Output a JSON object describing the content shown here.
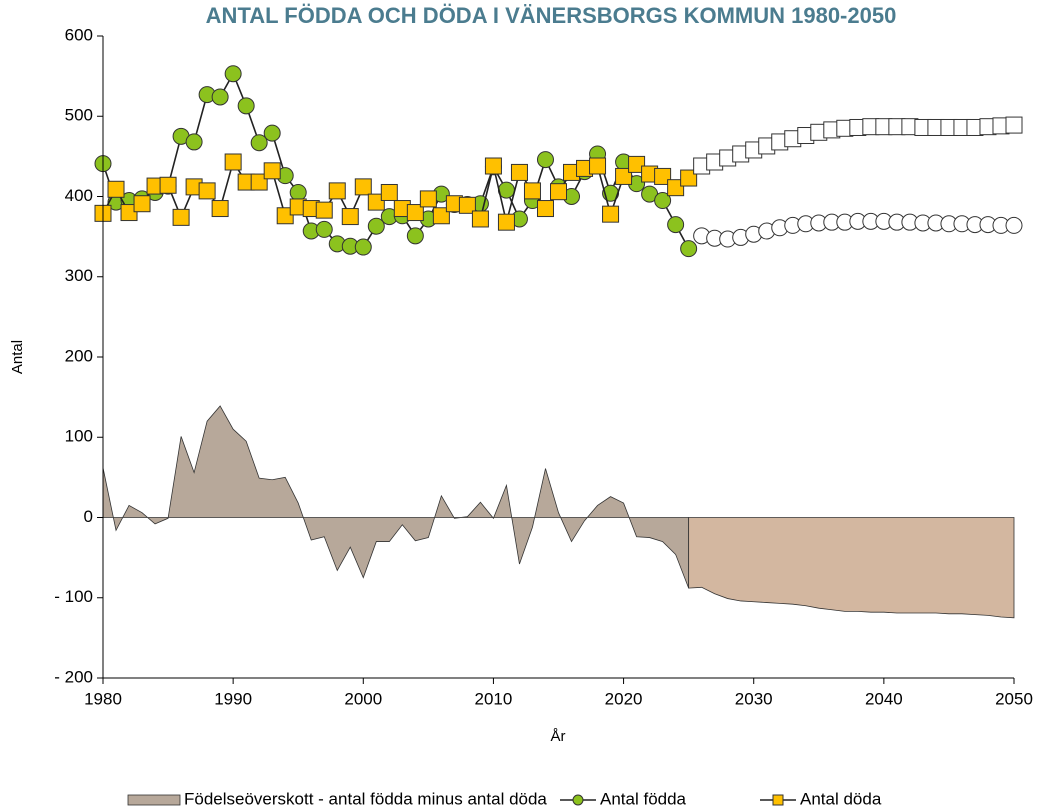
{
  "chart_data": {
    "type": "line",
    "title": "ANTAL FÖDDA OCH DÖDA I VÄNERSBORGS KOMMUN 1980-2050",
    "x_label": "År",
    "y_label": "Antal",
    "x": [
      1980,
      1981,
      1982,
      1983,
      1984,
      1985,
      1986,
      1987,
      1988,
      1989,
      1990,
      1991,
      1992,
      1993,
      1994,
      1995,
      1996,
      1997,
      1998,
      1999,
      2000,
      2001,
      2002,
      2003,
      2004,
      2005,
      2006,
      2007,
      2008,
      2009,
      2010,
      2011,
      2012,
      2013,
      2014,
      2015,
      2016,
      2017,
      2018,
      2019,
      2020,
      2021,
      2022,
      2023,
      2024,
      2025,
      2026,
      2027,
      2028,
      2029,
      2030,
      2031,
      2032,
      2033,
      2034,
      2035,
      2036,
      2037,
      2038,
      2039,
      2040,
      2041,
      2042,
      2043,
      2044,
      2045,
      2046,
      2047,
      2048,
      2049,
      2050
    ],
    "xlim": [
      1980,
      2050
    ],
    "xticks": [
      1980,
      1990,
      2000,
      2010,
      2020,
      2030,
      2040,
      2050
    ],
    "ylim": [
      -200,
      600
    ],
    "yticks": [
      {
        "value": -200,
        "label": "- 200"
      },
      {
        "value": -100,
        "label": "- 100"
      },
      0,
      100,
      200,
      300,
      400,
      500,
      600
    ],
    "grid": false,
    "legend": "bottom",
    "series": [
      {
        "name": "Födelseöverskott - antal födda minus antal döda",
        "type": "area",
        "color": "#b7a89a",
        "values": [
          62,
          -16,
          15,
          6,
          -8,
          -1,
          101,
          56,
          120,
          139,
          110,
          95,
          49,
          47,
          50,
          18,
          -28,
          -24,
          -66,
          -37,
          -75,
          -30,
          -30,
          -9,
          -29,
          -25,
          27,
          -1,
          1,
          19,
          -1,
          40,
          -58,
          -12,
          61,
          6,
          -30,
          -4,
          15,
          26,
          18,
          -24,
          -25,
          -30,
          -46,
          -88,
          null,
          null,
          null,
          null,
          null,
          null,
          null,
          null,
          null,
          null,
          null,
          null,
          null,
          null,
          null,
          null,
          null,
          null,
          null,
          null,
          null,
          null,
          null,
          null,
          null
        ]
      },
      {
        "type": "area",
        "color": "#d3b7a0",
        "values": [
          null,
          null,
          null,
          null,
          null,
          null,
          null,
          null,
          null,
          null,
          null,
          null,
          null,
          null,
          null,
          null,
          null,
          null,
          null,
          null,
          null,
          null,
          null,
          null,
          null,
          null,
          null,
          null,
          null,
          null,
          null,
          null,
          null,
          null,
          null,
          null,
          null,
          null,
          null,
          null,
          null,
          null,
          null,
          null,
          null,
          -88,
          -87,
          -95,
          -101,
          -104,
          -105,
          -106,
          -107,
          -108,
          -110,
          -113,
          -115,
          -117,
          -117,
          -118,
          -118,
          -119,
          -119,
          -119,
          -119,
          -120,
          -120,
          -121,
          -122,
          -124,
          -125
        ]
      },
      {
        "name": "Antal födda",
        "type": "line",
        "marker": "circle",
        "color": "#8cc21e",
        "values": [
          441,
          393,
          395,
          397,
          405,
          413,
          475,
          468,
          527,
          524,
          553,
          513,
          467,
          479,
          426,
          405,
          357,
          359,
          341,
          338,
          337,
          363,
          375,
          376,
          351,
          372,
          403,
          390,
          390,
          391,
          437,
          408,
          372,
          395,
          446,
          412,
          400,
          431,
          453,
          404,
          443,
          416,
          403,
          395,
          365,
          335,
          null,
          null,
          null,
          null,
          null,
          null,
          null,
          null,
          null,
          null,
          null,
          null,
          null,
          null,
          null,
          null,
          null,
          null,
          null,
          null,
          null,
          null,
          null,
          null,
          null
        ]
      },
      {
        "name": "Antal döda",
        "type": "line",
        "marker": "square",
        "color": "#ffc000",
        "values": [
          379,
          409,
          380,
          391,
          413,
          414,
          374,
          412,
          407,
          385,
          443,
          418,
          418,
          432,
          376,
          387,
          385,
          383,
          407,
          375,
          412,
          393,
          405,
          385,
          380,
          397,
          376,
          391,
          389,
          372,
          438,
          368,
          430,
          407,
          385,
          406,
          430,
          435,
          438,
          378,
          425,
          440,
          428,
          425,
          411,
          423,
          null,
          null,
          null,
          null,
          null,
          null,
          null,
          null,
          null,
          null,
          null,
          null,
          null,
          null,
          null,
          null,
          null,
          null,
          null,
          null,
          null,
          null,
          null,
          null,
          null
        ]
      },
      {
        "type": "line",
        "marker": "circle",
        "color": "#ffffff",
        "values": [
          null,
          null,
          null,
          null,
          null,
          null,
          null,
          null,
          null,
          null,
          null,
          null,
          null,
          null,
          null,
          null,
          null,
          null,
          null,
          null,
          null,
          null,
          null,
          null,
          null,
          null,
          null,
          null,
          null,
          null,
          null,
          null,
          null,
          null,
          null,
          null,
          null,
          null,
          null,
          null,
          null,
          null,
          null,
          null,
          null,
          null,
          351,
          348,
          347,
          349,
          353,
          357,
          361,
          364,
          366,
          367,
          368,
          368,
          369,
          369,
          369,
          368,
          368,
          367,
          367,
          366,
          366,
          365,
          365,
          364,
          364
        ]
      },
      {
        "type": "line",
        "marker": "square",
        "color": "#ffffff",
        "values": [
          null,
          null,
          null,
          null,
          null,
          null,
          null,
          null,
          null,
          null,
          null,
          null,
          null,
          null,
          null,
          null,
          null,
          null,
          null,
          null,
          null,
          null,
          null,
          null,
          null,
          null,
          null,
          null,
          null,
          null,
          null,
          null,
          null,
          null,
          null,
          null,
          null,
          null,
          null,
          null,
          null,
          null,
          null,
          null,
          null,
          null,
          438,
          443,
          448,
          453,
          458,
          463,
          468,
          472,
          476,
          480,
          483,
          485,
          486,
          487,
          487,
          487,
          487,
          486,
          486,
          486,
          486,
          486,
          487,
          488,
          489
        ]
      }
    ]
  }
}
